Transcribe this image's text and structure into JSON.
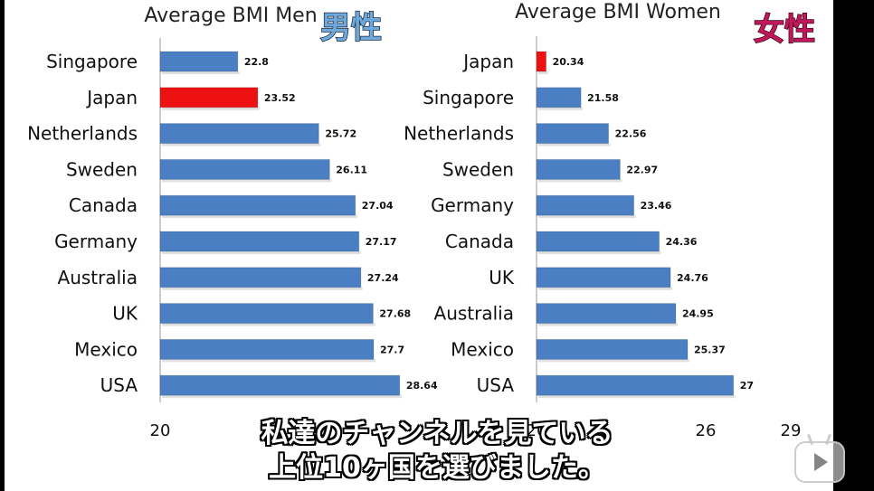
{
  "colors": {
    "bar": "#4a7fc4",
    "highlight": "#ee1111",
    "men_label": "#6fa8dc",
    "women_label": "#c2185b"
  },
  "chart_data": [
    {
      "type": "bar",
      "orientation": "horizontal",
      "title": "Average BMI Men",
      "label_jp": "男性",
      "categories": [
        "Singapore",
        "Japan",
        "Netherlands",
        "Sweden",
        "Canada",
        "Germany",
        "Australia",
        "UK",
        "Mexico",
        "USA"
      ],
      "values": [
        22.8,
        23.52,
        25.72,
        26.11,
        27.04,
        27.17,
        27.24,
        27.68,
        27.7,
        28.64
      ],
      "value_labels": [
        "22.8",
        "23.52",
        "25.72",
        "26.11",
        "27.04",
        "27.17",
        "27.24",
        "27.68",
        "27.7",
        "28.64"
      ],
      "highlight": "Japan",
      "xlim": [
        20,
        30
      ],
      "xticks": [
        "20"
      ],
      "grid": false
    },
    {
      "type": "bar",
      "orientation": "horizontal",
      "title": "Average BMI Women",
      "label_jp": "女性",
      "categories": [
        "Japan",
        "Singapore",
        "Netherlands",
        "Sweden",
        "Germany",
        "Canada",
        "UK",
        "Australia",
        "Mexico",
        "USA"
      ],
      "values": [
        20.34,
        21.58,
        22.56,
        22.97,
        23.46,
        24.36,
        24.76,
        24.95,
        25.37,
        27
      ],
      "value_labels": [
        "20.34",
        "21.58",
        "22.56",
        "22.97",
        "23.46",
        "24.36",
        "24.76",
        "24.95",
        "25.37",
        "27"
      ],
      "highlight": "Japan",
      "xlim": [
        20,
        29
      ],
      "xticks": [
        "20",
        "26",
        "29"
      ],
      "grid": false
    }
  ],
  "subtitles": {
    "line1": "私達のチャンネルを見ている",
    "line2": "上位10ヶ国を選びました。"
  },
  "icons": {
    "player": "play-button-icon"
  }
}
